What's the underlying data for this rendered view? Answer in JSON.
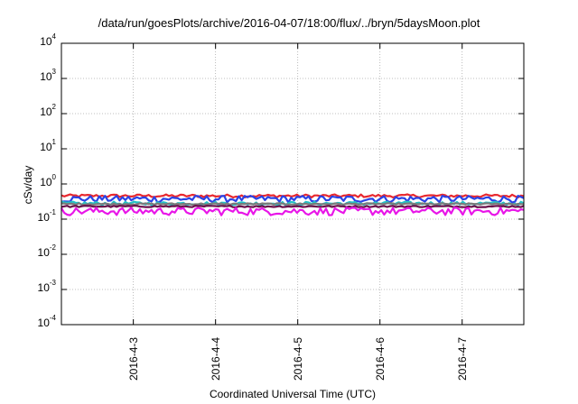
{
  "chart_data": {
    "type": "line",
    "title": "/data/run/goesPlots/archive/2016-04-07/18:00/flux/../bryn/5daysMoon.plot",
    "xlabel": "Coordinated Universal Time (UTC)",
    "ylabel": "cSv/day",
    "yscale": "log",
    "ylim": [
      0.0001,
      10000
    ],
    "xlim": [
      "2016-04-02T03:00",
      "2016-04-07T18:00"
    ],
    "yticks": [
      {
        "base": "10",
        "exp": "4"
      },
      {
        "base": "10",
        "exp": "3"
      },
      {
        "base": "10",
        "exp": "2"
      },
      {
        "base": "10",
        "exp": "1"
      },
      {
        "base": "10",
        "exp": "0"
      },
      {
        "base": "10",
        "exp": "-1"
      },
      {
        "base": "10",
        "exp": "-2"
      },
      {
        "base": "10",
        "exp": "-3"
      },
      {
        "base": "10",
        "exp": "-4"
      }
    ],
    "xticks": [
      "2016-4-3",
      "2016-4-4",
      "2016-4-5",
      "2016-4-6",
      "2016-4-7"
    ],
    "grid": true,
    "legend": "none",
    "series": [
      {
        "color": "#e8282f",
        "mean": 0.46,
        "noise": 0.1
      },
      {
        "color": "#2a43e6",
        "mean": 0.38,
        "noise": 0.22
      },
      {
        "color": "#22c3c6",
        "mean": 0.28,
        "noise": 0.12
      },
      {
        "color": "#7a7a7a",
        "mean": 0.27,
        "noise": 0.05
      },
      {
        "color": "#6a0f4a",
        "mean": 0.23,
        "noise": 0.05
      },
      {
        "color": "#e816e8",
        "mean": 0.17,
        "noise": 0.25
      }
    ],
    "points_per_series": 160
  }
}
